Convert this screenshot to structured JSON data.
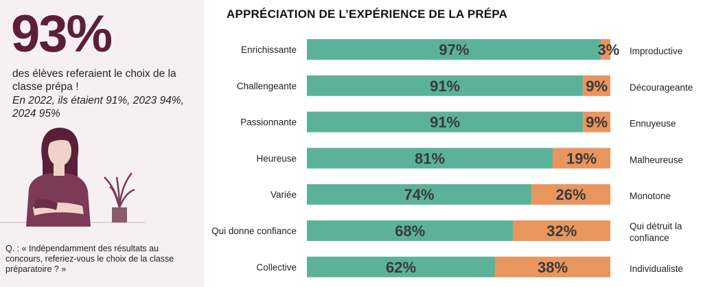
{
  "panel": {
    "stat": "93%",
    "text": "des élèves referaient le choix de la classe prépa !",
    "note": "En 2022, ils étaient 91%, 2023 94%, 2024 95%",
    "question": "Q. : « Indépendamment des résultats au concours, referiez-vous le choix de la classe préparatoire ? »"
  },
  "colors": {
    "positive": "#5bb299",
    "negative": "#e8955e",
    "panel_bg": "#f7f0f3",
    "accent": "#5c1f3a"
  },
  "chart_data": {
    "type": "bar",
    "orientation": "horizontal",
    "stacked": true,
    "title": "APPRÉCIATION DE L’EXPÉRIENCE DE LA PRÉPA",
    "categories": [
      {
        "positive": "Enrichissante",
        "negative": [
          "Improductive"
        ]
      },
      {
        "positive": "Challengeante",
        "negative": [
          "Décourageante"
        ]
      },
      {
        "positive": "Passionnante",
        "negative": [
          "Ennuyeuse"
        ]
      },
      {
        "positive": "Heureuse",
        "negative": [
          "Malheureuse"
        ]
      },
      {
        "positive": "Variée",
        "negative": [
          "Monotone"
        ]
      },
      {
        "positive": "Qui donne confiance",
        "negative": [
          "Qui détruit la",
          "confiance"
        ]
      },
      {
        "positive": "Collective",
        "negative": [
          "Individualiste"
        ]
      }
    ],
    "series": [
      {
        "name": "positive",
        "values": [
          97,
          91,
          91,
          81,
          74,
          68,
          62
        ]
      },
      {
        "name": "negative",
        "values": [
          3,
          9,
          9,
          19,
          26,
          32,
          38
        ]
      }
    ],
    "xlim": [
      0,
      100
    ],
    "value_suffix": "%"
  }
}
